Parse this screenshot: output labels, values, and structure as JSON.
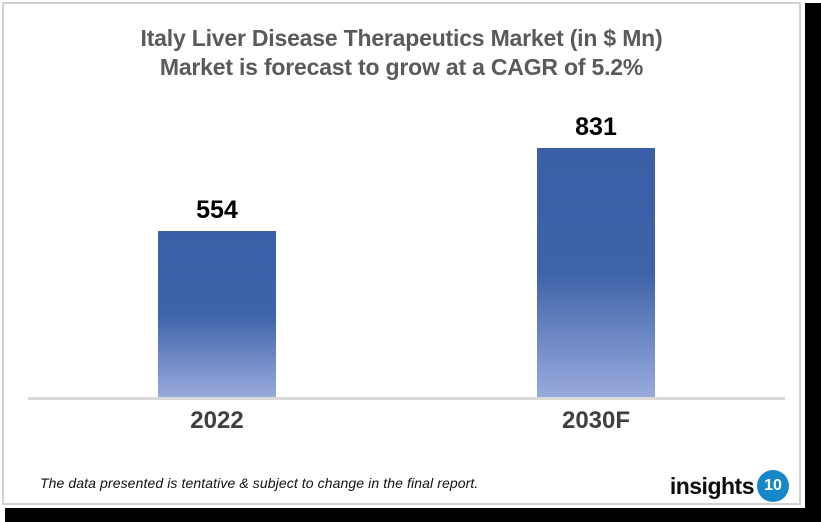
{
  "chart_data": {
    "type": "bar",
    "title": "Italy Liver Disease Therapeutics Market (in $ Mn)",
    "subtitle": "Market is forecast to grow at a CAGR of 5.2%",
    "categories": [
      "2022",
      "2030F"
    ],
    "values": [
      554,
      831
    ],
    "xlabel": "",
    "ylabel": "",
    "ylim": [
      0,
      900
    ],
    "gridlines": false,
    "legend": false,
    "value_labels_shown": true,
    "cagr_percent": 5.2
  },
  "footer": {
    "note": "The data presented is tentative & subject to change in the final report.",
    "logo_text": "insights",
    "logo_badge": "10"
  },
  "colors": {
    "bar_gradient_top": "#3A5FA6",
    "bar_gradient_bottom": "#98AADC",
    "title_text": "#5A5A5A",
    "axis_line": "#D9D9D9",
    "logo_badge_bg": "#1787C8",
    "shadow": "#000000"
  }
}
